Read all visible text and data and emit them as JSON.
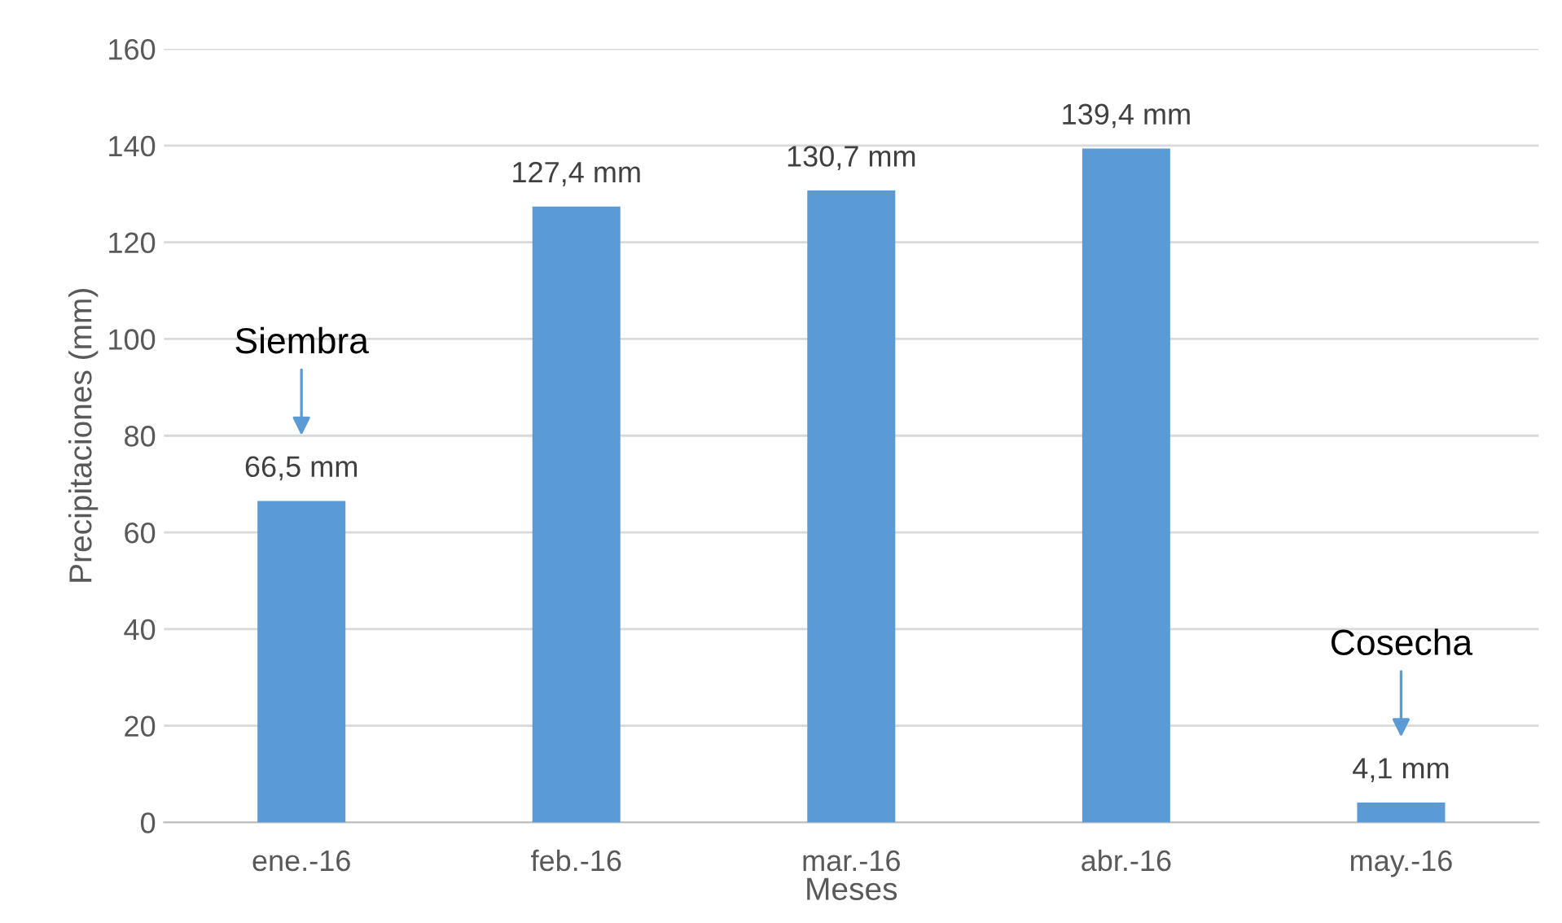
{
  "chart_data": {
    "type": "bar",
    "xlabel": "Meses",
    "ylabel": "Precipitaciones (mm)",
    "categories": [
      "ene.-16",
      "feb.-16",
      "mar.-16",
      "abr.-16",
      "may.-16"
    ],
    "values": [
      66.5,
      127.4,
      130.7,
      139.4,
      4.1
    ],
    "value_labels": [
      "66,5 mm",
      "127,4 mm",
      "130,7 mm",
      "139,4 mm",
      "4,1 mm"
    ],
    "color": "#5b9bd5",
    "ylim": [
      0,
      160
    ],
    "yticks": [
      0,
      20,
      40,
      60,
      80,
      100,
      120,
      140,
      160
    ],
    "grid": "y",
    "annotations": [
      "Siembra",
      "Cosecha"
    ]
  }
}
